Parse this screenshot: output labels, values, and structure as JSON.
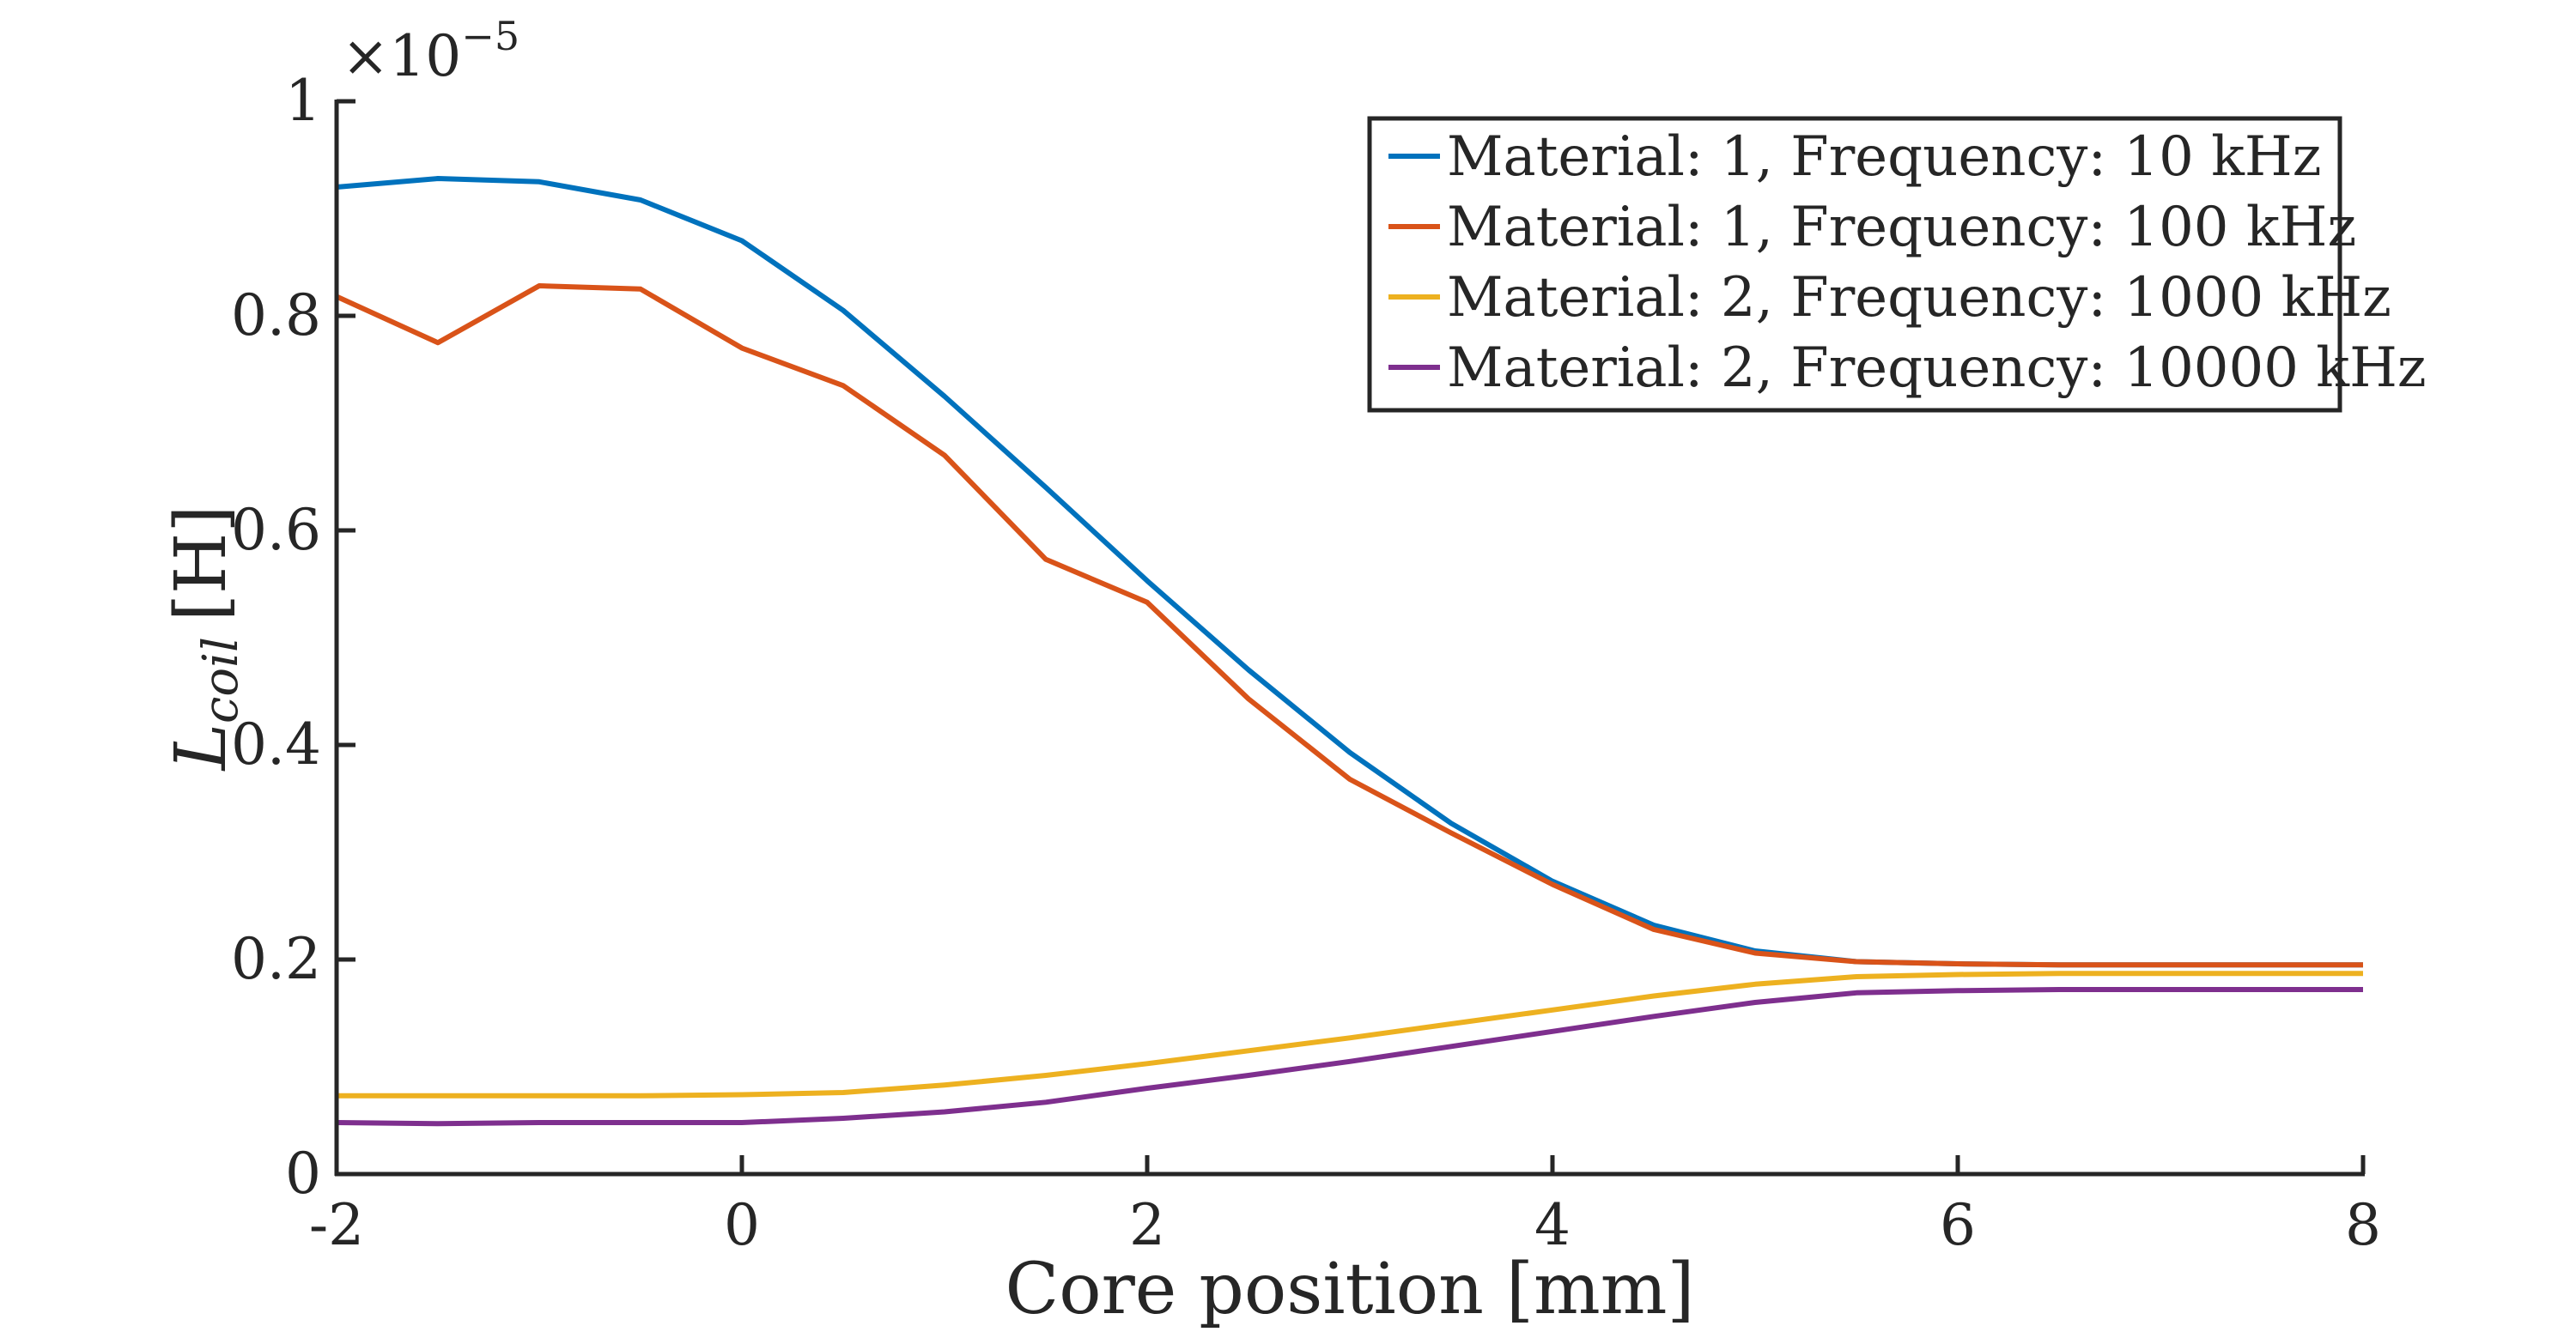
{
  "chart_data": {
    "type": "line",
    "title": "",
    "xlabel": "Core position [mm]",
    "ylabel_main": "L",
    "ylabel_sub": "coil",
    "ylabel_unit": "[H]",
    "exponent_prefix": "×10",
    "exponent_power": "−5",
    "xlim": [
      -2,
      8
    ],
    "ylim": [
      0,
      1
    ],
    "xticks": [
      -2,
      0,
      2,
      4,
      6,
      8
    ],
    "xtick_labels": [
      "-2",
      "0",
      "2",
      "4",
      "6",
      "8"
    ],
    "yticks": [
      0,
      0.2,
      0.4,
      0.6,
      0.8,
      1
    ],
    "ytick_labels": [
      "0",
      "0.2",
      "0.4",
      "0.6",
      "0.8",
      "1"
    ],
    "grid": false,
    "legend_position": "top-right",
    "x": [
      -2,
      -1.5,
      -1,
      -0.5,
      0,
      0.5,
      1,
      1.5,
      2,
      2.5,
      3,
      3.5,
      4,
      4.5,
      5,
      5.5,
      6,
      6.5,
      7,
      7.5,
      8
    ],
    "series": [
      {
        "name": "Material: 1, Frequency: 10 kHz",
        "color": "#0072BD",
        "values": [
          0.92,
          0.928,
          0.925,
          0.908,
          0.87,
          0.805,
          0.725,
          0.64,
          0.553,
          0.47,
          0.393,
          0.327,
          0.273,
          0.232,
          0.208,
          0.198,
          0.196,
          0.195,
          0.195,
          0.195,
          0.195
        ]
      },
      {
        "name": "Material: 1, Frequency: 100 kHz",
        "color": "#D95319",
        "values": [
          0.818,
          0.775,
          0.828,
          0.825,
          0.77,
          0.735,
          0.67,
          0.573,
          0.533,
          0.443,
          0.368,
          0.318,
          0.27,
          0.228,
          0.206,
          0.198,
          0.196,
          0.195,
          0.195,
          0.195,
          0.195
        ]
      },
      {
        "name": "Material: 2, Frequency: 1000 kHz",
        "color": "#EDB120",
        "values": [
          0.073,
          0.073,
          0.073,
          0.073,
          0.074,
          0.076,
          0.083,
          0.092,
          0.103,
          0.115,
          0.127,
          0.14,
          0.153,
          0.166,
          0.177,
          0.184,
          0.186,
          0.187,
          0.187,
          0.187,
          0.187
        ]
      },
      {
        "name": "Material: 2, Frequency: 10000 kHz",
        "color": "#7E2F8E",
        "values": [
          0.048,
          0.047,
          0.048,
          0.048,
          0.048,
          0.052,
          0.058,
          0.067,
          0.08,
          0.092,
          0.105,
          0.119,
          0.133,
          0.147,
          0.16,
          0.169,
          0.171,
          0.172,
          0.172,
          0.172,
          0.172
        ]
      }
    ]
  }
}
